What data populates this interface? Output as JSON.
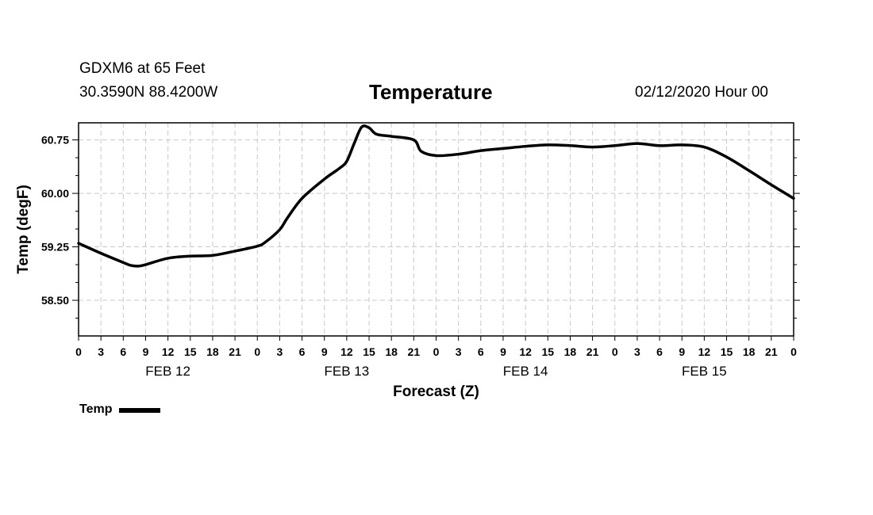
{
  "header": {
    "station": "GDXM6 at 65 Feet",
    "coords": "30.3590N 88.4200W",
    "title": "Temperature",
    "datetime": "02/12/2020 Hour 00"
  },
  "chart_data": {
    "type": "line",
    "title": "Temperature",
    "xlabel": "Forecast (Z)",
    "ylabel": "Temp (degF)",
    "ylim": [
      58.0,
      60.99
    ],
    "yticks": [
      58.5,
      59.25,
      60.0,
      60.75
    ],
    "ytick_labels": [
      "58.50",
      "59.25",
      "60.00",
      "60.75"
    ],
    "grid": true,
    "x_hours_range": [
      0,
      96
    ],
    "xtick_labels": [
      "0",
      "3",
      "6",
      "9",
      "12",
      "15",
      "18",
      "21",
      "0",
      "3",
      "6",
      "9",
      "12",
      "15",
      "18",
      "21",
      "0",
      "3",
      "6",
      "9",
      "12",
      "15",
      "18",
      "21",
      "0",
      "3",
      "6",
      "9",
      "12",
      "15",
      "18",
      "21",
      "0"
    ],
    "date_labels": [
      {
        "label": "FEB 12",
        "hour": 12
      },
      {
        "label": "FEB 13",
        "hour": 36
      },
      {
        "label": "FEB 14",
        "hour": 60
      },
      {
        "label": "FEB 15",
        "hour": 84
      }
    ],
    "series": [
      {
        "name": "Temp",
        "color": "#000000",
        "x": [
          0,
          3,
          6,
          7,
          8,
          9,
          12,
          15,
          18,
          21,
          24,
          25,
          27,
          28,
          30,
          33,
          35,
          36,
          37,
          38,
          39,
          40,
          42,
          45,
          46,
          48,
          51,
          54,
          57,
          60,
          63,
          66,
          69,
          72,
          75,
          78,
          81,
          84,
          87,
          90,
          93,
          96
        ],
        "values": [
          59.3,
          59.16,
          59.03,
          58.99,
          58.98,
          59.0,
          59.09,
          59.12,
          59.13,
          59.19,
          59.26,
          59.31,
          59.49,
          59.65,
          59.93,
          60.2,
          60.35,
          60.45,
          60.7,
          60.93,
          60.92,
          60.83,
          60.8,
          60.75,
          60.59,
          60.53,
          60.55,
          60.6,
          60.63,
          60.66,
          60.68,
          60.67,
          60.65,
          60.67,
          60.7,
          60.67,
          60.68,
          60.65,
          60.51,
          60.32,
          60.12,
          59.93
        ]
      }
    ]
  },
  "legend": {
    "label": "Temp"
  }
}
